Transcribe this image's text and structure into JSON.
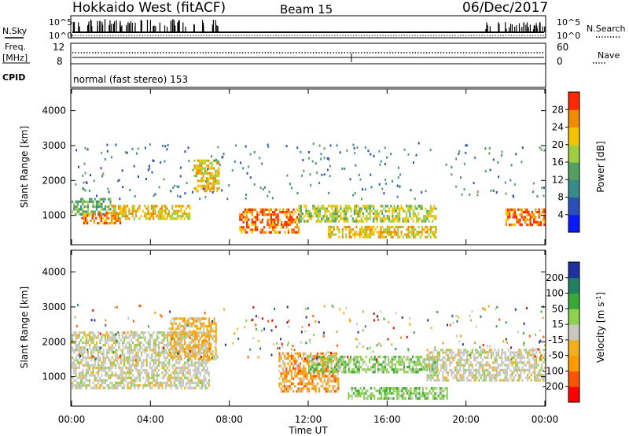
{
  "header": {
    "station": "Hokkaido West (fitACF)",
    "beam": "Beam 15",
    "date": "06/Dec/2017"
  },
  "summary_panel": {
    "left_labels": {
      "nsky": "N.Sky",
      "freq_line1": "Freq.",
      "freq_line2": "[MHz]",
      "cpid": "CPID"
    },
    "left_ticks": {
      "noise_top": "10^5",
      "noise_bottom": "10^0",
      "freq_top": "12",
      "freq_bottom": "8"
    },
    "right_ticks": {
      "noise_top": "10^5",
      "noise_bottom": "10^0",
      "nave_top": "60",
      "nave_bottom": "0"
    },
    "right_labels": {
      "nsearch": "N.Search",
      "nave": "Nave"
    },
    "cpid_text": "normal (fast stereo) 153"
  },
  "chart_data": [
    {
      "type": "heatmap",
      "title": "",
      "xlabel": "",
      "ylabel": "Slant Range [km]",
      "x_range_hours": [
        0,
        24
      ],
      "ylim_km": [
        180,
        4600
      ],
      "yticks": [
        "1000",
        "2000",
        "3000",
        "4000"
      ],
      "colorbar": {
        "label": "Power [dB]",
        "range": [
          0,
          32
        ],
        "ticks": [
          "4",
          "8",
          "12",
          "16",
          "20",
          "24",
          "28"
        ],
        "colors": [
          "#0a1aff",
          "#2a4fb8",
          "#3b8a8a",
          "#55a060",
          "#9fcf40",
          "#f5c400",
          "#f08a00",
          "#ff2a00"
        ]
      },
      "echo_bands_km": [
        {
          "t0": 0.0,
          "t1": 2.0,
          "r_top": 1500,
          "r_bot": 1000,
          "level": "low-mid"
        },
        {
          "t0": 0.5,
          "t1": 2.5,
          "r_top": 1100,
          "r_bot": 750,
          "level": "high"
        },
        {
          "t0": 2.0,
          "t1": 6.0,
          "r_top": 1300,
          "r_bot": 900,
          "level": "mid-high"
        },
        {
          "t0": 6.2,
          "t1": 7.5,
          "r_top": 2600,
          "r_bot": 1700,
          "level": "mid-high"
        },
        {
          "t0": 8.5,
          "t1": 11.5,
          "r_top": 1200,
          "r_bot": 550,
          "level": "high"
        },
        {
          "t0": 11.5,
          "t1": 18.5,
          "r_top": 1300,
          "r_bot": 800,
          "level": "mid"
        },
        {
          "t0": 13.0,
          "t1": 18.5,
          "r_top": 700,
          "r_bot": 400,
          "level": "mid-high"
        },
        {
          "t0": 22.0,
          "t1": 24.0,
          "r_top": 1200,
          "r_bot": 700,
          "level": "high"
        }
      ]
    },
    {
      "type": "heatmap",
      "title": "",
      "xlabel": "Time UT",
      "ylabel": "Slant Range [km]",
      "x_range_hours": [
        0,
        24
      ],
      "xticks": [
        "00:00",
        "04:00",
        "08:00",
        "12:00",
        "16:00",
        "20:00",
        "00:00"
      ],
      "ylim_km": [
        180,
        4600
      ],
      "yticks": [
        "1000",
        "2000",
        "3000",
        "4000"
      ],
      "colorbar": {
        "label": "Velocity [m s^-1]",
        "range": [
          -250,
          250
        ],
        "ticks": [
          "200",
          "100",
          "50",
          "15",
          "-15",
          "-50",
          "-100",
          "-200"
        ],
        "colors": [
          "#ff0000",
          "#ff5500",
          "#ff9a00",
          "#f0b020",
          "#c8c8c0",
          "#8ed050",
          "#38a838",
          "#208060",
          "#2030a0"
        ]
      },
      "echo_bands_km": [
        {
          "t0": 0.0,
          "t1": 7.0,
          "r_top": 2300,
          "r_bot": 700,
          "level": "ground-scatter"
        },
        {
          "t0": 5.0,
          "t1": 7.3,
          "r_top": 2700,
          "r_bot": 1500,
          "level": "neg-weak"
        },
        {
          "t0": 10.5,
          "t1": 13.5,
          "r_top": 1700,
          "r_bot": 600,
          "level": "neg-strong"
        },
        {
          "t0": 12.0,
          "t1": 18.5,
          "r_top": 1600,
          "r_bot": 1100,
          "level": "pos"
        },
        {
          "t0": 14.0,
          "t1": 19.0,
          "r_top": 700,
          "r_bot": 400,
          "level": "pos"
        },
        {
          "t0": 18.0,
          "t1": 24.0,
          "r_top": 1800,
          "r_bot": 900,
          "level": "ground-scatter"
        }
      ]
    }
  ]
}
